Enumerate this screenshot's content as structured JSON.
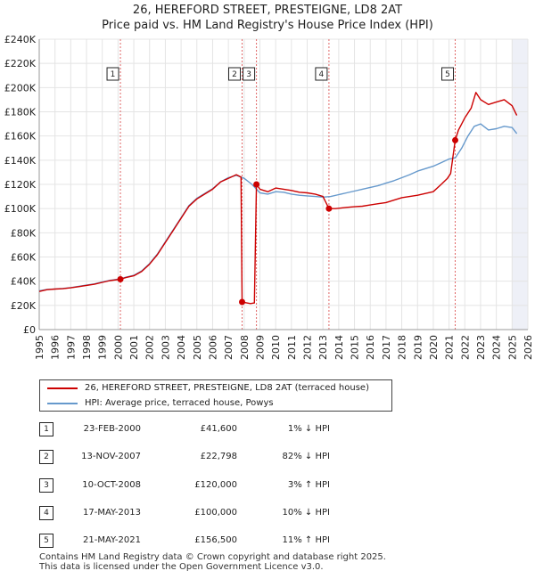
{
  "header": {
    "title_line1": "26, HEREFORD STREET, PRESTEIGNE, LD8 2AT",
    "title_line2": "Price paid vs. HM Land Registry's House Price Index (HPI)"
  },
  "colors": {
    "price": "#cc0000",
    "hpi": "#6699cc",
    "grid": "#e4e4e4",
    "vline": "#e06666"
  },
  "chart_data": {
    "type": "line",
    "title": "26, HEREFORD STREET, PRESTEIGNE, LD8 2AT — Price paid vs. HM Land Registry's House Price Index (HPI)",
    "xlim": [
      1995,
      2026
    ],
    "ylim": [
      0,
      240000
    ],
    "x_ticks": [
      1995,
      1996,
      1997,
      1998,
      1999,
      2000,
      2001,
      2002,
      2003,
      2004,
      2005,
      2006,
      2007,
      2008,
      2009,
      2010,
      2011,
      2012,
      2013,
      2014,
      2015,
      2016,
      2017,
      2018,
      2019,
      2020,
      2021,
      2022,
      2023,
      2024,
      2025,
      2026
    ],
    "y_ticks": [
      {
        "value": 0,
        "label": "£0"
      },
      {
        "value": 20000,
        "label": "£20K"
      },
      {
        "value": 40000,
        "label": "£40K"
      },
      {
        "value": 60000,
        "label": "£60K"
      },
      {
        "value": 80000,
        "label": "£80K"
      },
      {
        "value": 100000,
        "label": "£100K"
      },
      {
        "value": 120000,
        "label": "£120K"
      },
      {
        "value": 140000,
        "label": "£140K"
      },
      {
        "value": 160000,
        "label": "£160K"
      },
      {
        "value": 180000,
        "label": "£180K"
      },
      {
        "value": 200000,
        "label": "£200K"
      },
      {
        "value": 220000,
        "label": "£220K"
      },
      {
        "value": 240000,
        "label": "£240K"
      }
    ],
    "series": [
      {
        "name": "26, HEREFORD STREET, PRESTEIGNE, LD8 2AT (terraced house)",
        "color": "#cc0000",
        "points": [
          [
            1995.0,
            31500
          ],
          [
            1995.5,
            33000
          ],
          [
            1996.0,
            33500
          ],
          [
            1996.5,
            33800
          ],
          [
            1997.0,
            34500
          ],
          [
            1997.5,
            35500
          ],
          [
            1998.0,
            36500
          ],
          [
            1998.5,
            37500
          ],
          [
            1999.0,
            39000
          ],
          [
            1999.5,
            40500
          ],
          [
            2000.15,
            41600
          ],
          [
            2000.5,
            43000
          ],
          [
            2001.0,
            44500
          ],
          [
            2001.5,
            48000
          ],
          [
            2002.0,
            54000
          ],
          [
            2002.5,
            62000
          ],
          [
            2003.0,
            72000
          ],
          [
            2003.5,
            82000
          ],
          [
            2004.0,
            92000
          ],
          [
            2004.5,
            102000
          ],
          [
            2005.0,
            108000
          ],
          [
            2005.5,
            112000
          ],
          [
            2006.0,
            116000
          ],
          [
            2006.5,
            122000
          ],
          [
            2007.0,
            125000
          ],
          [
            2007.5,
            128000
          ],
          [
            2007.8,
            126000
          ],
          [
            2007.87,
            22798
          ],
          [
            2008.4,
            21500
          ],
          [
            2008.65,
            22000
          ],
          [
            2008.78,
            120000
          ],
          [
            2009.0,
            116000
          ],
          [
            2009.5,
            114000
          ],
          [
            2010.0,
            117000
          ],
          [
            2010.5,
            116000
          ],
          [
            2011.0,
            115000
          ],
          [
            2011.5,
            113500
          ],
          [
            2012.0,
            113000
          ],
          [
            2012.5,
            112000
          ],
          [
            2013.0,
            110000
          ],
          [
            2013.38,
            100000
          ],
          [
            2013.8,
            100000
          ],
          [
            2014.5,
            101000
          ],
          [
            2015.0,
            101500
          ],
          [
            2015.5,
            102000
          ],
          [
            2016.0,
            103000
          ],
          [
            2016.5,
            104000
          ],
          [
            2017.0,
            105000
          ],
          [
            2017.5,
            107000
          ],
          [
            2018.0,
            109000
          ],
          [
            2018.5,
            110000
          ],
          [
            2019.0,
            111000
          ],
          [
            2019.5,
            112500
          ],
          [
            2020.0,
            114000
          ],
          [
            2020.5,
            120000
          ],
          [
            2020.9,
            125000
          ],
          [
            2021.1,
            129000
          ],
          [
            2021.39,
            156500
          ],
          [
            2021.6,
            165000
          ],
          [
            2022.0,
            175000
          ],
          [
            2022.4,
            183000
          ],
          [
            2022.7,
            196000
          ],
          [
            2023.0,
            190000
          ],
          [
            2023.5,
            186000
          ],
          [
            2024.0,
            188000
          ],
          [
            2024.5,
            190000
          ],
          [
            2025.0,
            185000
          ],
          [
            2025.3,
            177000
          ]
        ]
      },
      {
        "name": "HPI: Average price, terraced house, Powys",
        "color": "#6699cc",
        "points": [
          [
            1995.0,
            32000
          ],
          [
            1995.5,
            33200
          ],
          [
            1996.0,
            33600
          ],
          [
            1996.5,
            34000
          ],
          [
            1997.0,
            34700
          ],
          [
            1997.5,
            35700
          ],
          [
            1998.0,
            36700
          ],
          [
            1998.5,
            37800
          ],
          [
            1999.0,
            39300
          ],
          [
            1999.5,
            40700
          ],
          [
            2000.15,
            41900
          ],
          [
            2000.5,
            43300
          ],
          [
            2001.0,
            44800
          ],
          [
            2001.5,
            48500
          ],
          [
            2002.0,
            54500
          ],
          [
            2002.5,
            62500
          ],
          [
            2003.0,
            72500
          ],
          [
            2003.5,
            82500
          ],
          [
            2004.0,
            92500
          ],
          [
            2004.5,
            102500
          ],
          [
            2005.0,
            108500
          ],
          [
            2005.5,
            112500
          ],
          [
            2006.0,
            116500
          ],
          [
            2006.5,
            122000
          ],
          [
            2007.0,
            125500
          ],
          [
            2007.5,
            127500
          ],
          [
            2008.0,
            125000
          ],
          [
            2008.5,
            120000
          ],
          [
            2009.0,
            113000
          ],
          [
            2009.5,
            112000
          ],
          [
            2010.0,
            114000
          ],
          [
            2010.5,
            113500
          ],
          [
            2011.0,
            112000
          ],
          [
            2011.5,
            111000
          ],
          [
            2012.0,
            110500
          ],
          [
            2012.5,
            110000
          ],
          [
            2013.0,
            109500
          ],
          [
            2013.5,
            110000
          ],
          [
            2014.0,
            111500
          ],
          [
            2014.5,
            113000
          ],
          [
            2015.0,
            114500
          ],
          [
            2015.5,
            116000
          ],
          [
            2016.0,
            117500
          ],
          [
            2016.5,
            119000
          ],
          [
            2017.0,
            121000
          ],
          [
            2017.5,
            123000
          ],
          [
            2018.0,
            125500
          ],
          [
            2018.5,
            128000
          ],
          [
            2019.0,
            131000
          ],
          [
            2019.5,
            133000
          ],
          [
            2020.0,
            135000
          ],
          [
            2020.5,
            138000
          ],
          [
            2021.0,
            141000
          ],
          [
            2021.4,
            142000
          ],
          [
            2021.8,
            150000
          ],
          [
            2022.2,
            160000
          ],
          [
            2022.6,
            168000
          ],
          [
            2023.0,
            170000
          ],
          [
            2023.5,
            165000
          ],
          [
            2024.0,
            166000
          ],
          [
            2024.5,
            168000
          ],
          [
            2025.0,
            167000
          ],
          [
            2025.3,
            162000
          ]
        ]
      }
    ],
    "transactions": [
      {
        "id": "1",
        "date": "23-FEB-2000",
        "price": "£41,600",
        "hpi": "1% ↓ HPI",
        "x": 2000.15,
        "y": 41600
      },
      {
        "id": "2",
        "date": "13-NOV-2007",
        "price": "£22,798",
        "hpi": "82% ↓ HPI",
        "x": 2007.87,
        "y": 22798
      },
      {
        "id": "3",
        "date": "10-OCT-2008",
        "price": "£120,000",
        "hpi": "3% ↑ HPI",
        "x": 2008.78,
        "y": 120000
      },
      {
        "id": "4",
        "date": "17-MAY-2013",
        "price": "£100,000",
        "hpi": "10% ↓ HPI",
        "x": 2013.38,
        "y": 100000
      },
      {
        "id": "5",
        "date": "21-MAY-2021",
        "price": "£156,500",
        "hpi": "11% ↑ HPI",
        "x": 2021.39,
        "y": 156500
      }
    ],
    "shaded_ranges": [
      [
        2025.0,
        2026.0
      ]
    ]
  },
  "legend": {
    "price_label": "26, HEREFORD STREET, PRESTEIGNE, LD8 2AT (terraced house)",
    "hpi_label": "HPI: Average price, terraced house, Powys"
  },
  "footer": {
    "line1": "Contains HM Land Registry data © Crown copyright and database right 2025.",
    "line2": "This data is licensed under the Open Government Licence v3.0."
  }
}
